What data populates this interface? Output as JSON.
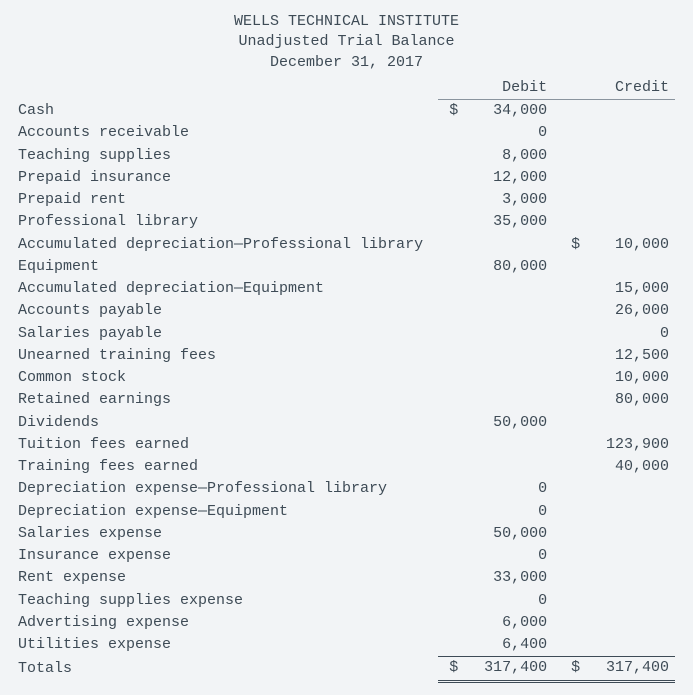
{
  "header": {
    "line1": "WELLS TECHNICAL INSTITUTE",
    "line2": "Unadjusted Trial Balance",
    "line3": "December 31, 2017"
  },
  "columns": {
    "debit": "Debit",
    "credit": "Credit"
  },
  "rows": [
    {
      "account": "Cash",
      "debit_sym": "$",
      "debit": "34,000",
      "credit_sym": "",
      "credit": ""
    },
    {
      "account": "Accounts receivable",
      "debit_sym": "",
      "debit": "0",
      "credit_sym": "",
      "credit": ""
    },
    {
      "account": "Teaching supplies",
      "debit_sym": "",
      "debit": "8,000",
      "credit_sym": "",
      "credit": ""
    },
    {
      "account": "Prepaid insurance",
      "debit_sym": "",
      "debit": "12,000",
      "credit_sym": "",
      "credit": ""
    },
    {
      "account": "Prepaid rent",
      "debit_sym": "",
      "debit": "3,000",
      "credit_sym": "",
      "credit": ""
    },
    {
      "account": "Professional library",
      "debit_sym": "",
      "debit": "35,000",
      "credit_sym": "",
      "credit": ""
    },
    {
      "account": "Accumulated depreciation—Professional library",
      "debit_sym": "",
      "debit": "",
      "credit_sym": "$",
      "credit": "10,000"
    },
    {
      "account": "Equipment",
      "debit_sym": "",
      "debit": "80,000",
      "credit_sym": "",
      "credit": ""
    },
    {
      "account": "Accumulated depreciation—Equipment",
      "debit_sym": "",
      "debit": "",
      "credit_sym": "",
      "credit": "15,000"
    },
    {
      "account": "Accounts payable",
      "debit_sym": "",
      "debit": "",
      "credit_sym": "",
      "credit": "26,000"
    },
    {
      "account": "Salaries payable",
      "debit_sym": "",
      "debit": "",
      "credit_sym": "",
      "credit": "0"
    },
    {
      "account": "Unearned training fees",
      "debit_sym": "",
      "debit": "",
      "credit_sym": "",
      "credit": "12,500"
    },
    {
      "account": "Common stock",
      "debit_sym": "",
      "debit": "",
      "credit_sym": "",
      "credit": "10,000"
    },
    {
      "account": "Retained earnings",
      "debit_sym": "",
      "debit": "",
      "credit_sym": "",
      "credit": "80,000"
    },
    {
      "account": "Dividends",
      "debit_sym": "",
      "debit": "50,000",
      "credit_sym": "",
      "credit": ""
    },
    {
      "account": "Tuition fees earned",
      "debit_sym": "",
      "debit": "",
      "credit_sym": "",
      "credit": "123,900"
    },
    {
      "account": "Training fees earned",
      "debit_sym": "",
      "debit": "",
      "credit_sym": "",
      "credit": "40,000"
    },
    {
      "account": "Depreciation expense—Professional library",
      "debit_sym": "",
      "debit": "0",
      "credit_sym": "",
      "credit": ""
    },
    {
      "account": "Depreciation expense—Equipment",
      "debit_sym": "",
      "debit": "0",
      "credit_sym": "",
      "credit": ""
    },
    {
      "account": "Salaries expense",
      "debit_sym": "",
      "debit": "50,000",
      "credit_sym": "",
      "credit": ""
    },
    {
      "account": "Insurance expense",
      "debit_sym": "",
      "debit": "0",
      "credit_sym": "",
      "credit": ""
    },
    {
      "account": "Rent expense",
      "debit_sym": "",
      "debit": "33,000",
      "credit_sym": "",
      "credit": ""
    },
    {
      "account": "Teaching supplies expense",
      "debit_sym": "",
      "debit": "0",
      "credit_sym": "",
      "credit": ""
    },
    {
      "account": "Advertising expense",
      "debit_sym": "",
      "debit": "6,000",
      "credit_sym": "",
      "credit": ""
    },
    {
      "account": "Utilities expense",
      "debit_sym": "",
      "debit": "6,400",
      "credit_sym": "",
      "credit": ""
    }
  ],
  "totals": {
    "label": "Totals",
    "debit_sym": "$",
    "debit": "317,400",
    "credit_sym": "$",
    "credit": "317,400"
  },
  "style": {
    "background_color": "#f2f4f6",
    "text_color": "#3e4b56",
    "font_family": "Courier New",
    "font_size_pt": 11
  }
}
